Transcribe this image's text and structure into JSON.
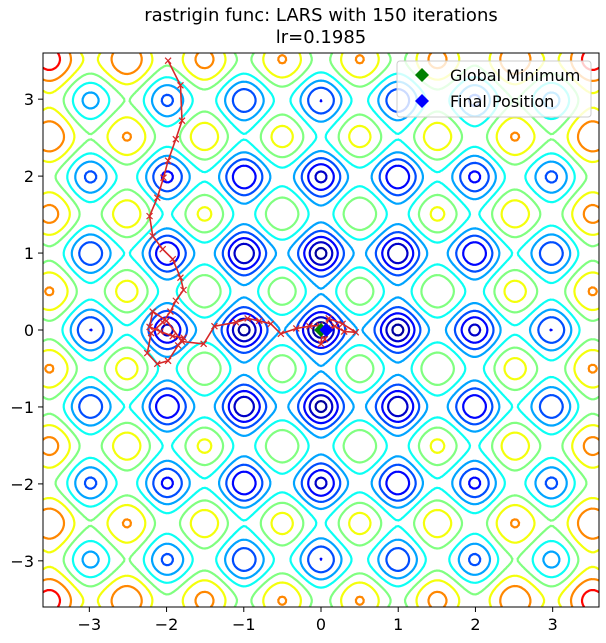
{
  "chart_data": {
    "type": "contour",
    "title": "rastrigin func: LARS with 150 iterations",
    "subtitle": "lr=0.1985",
    "xlabel": "",
    "ylabel": "",
    "xlim": [
      -3.6,
      3.6
    ],
    "ylim": [
      -3.6,
      3.6
    ],
    "xticks": [
      -3,
      -2,
      -1,
      0,
      1,
      2,
      3
    ],
    "yticks": [
      -3,
      -2,
      -1,
      0,
      1,
      2,
      3
    ],
    "xtick_labels": [
      "−3",
      "−2",
      "−1",
      "0",
      "1",
      "2",
      "3"
    ],
    "ytick_labels": [
      "−3",
      "−2",
      "−1",
      "0",
      "1",
      "2",
      "3"
    ],
    "grid": false,
    "legend_position": "top-right",
    "colormap": "jet",
    "contour_levels": [
      2,
      5,
      9,
      14,
      20,
      27,
      35,
      43,
      52,
      61,
      70
    ],
    "series": [
      {
        "name": "Global Minimum",
        "marker": "diamond",
        "color": "#008000",
        "x": [
          0.0
        ],
        "y": [
          0.0
        ]
      },
      {
        "name": "Final Position",
        "marker": "diamond",
        "color": "#0000ff",
        "x": [
          0.07
        ],
        "y": [
          0.0
        ]
      },
      {
        "name": "",
        "marker": "x",
        "color": "#d62728",
        "x": [
          -1.98,
          -1.82,
          -1.8,
          -1.88,
          -1.98,
          -2.04,
          -2.12,
          -2.22,
          -2.18,
          -2.05,
          -1.92,
          -1.82,
          -1.78,
          -1.88,
          -1.95,
          -2.05,
          -2.2,
          -2.25,
          -2.12,
          -1.98,
          -1.85,
          -1.78,
          -1.92,
          -2.08,
          -2.22,
          -2.18,
          -2.0,
          -1.8,
          -1.52,
          -1.38,
          -1.1,
          -0.95,
          -0.8,
          -0.65,
          -0.52,
          -0.32,
          -0.15,
          -0.02,
          0.05,
          0.1,
          0.28,
          0.45,
          0.3,
          0.18,
          0.08,
          0.05,
          0.0,
          0.02,
          0.05,
          0.07
        ],
        "y": [
          3.5,
          3.18,
          2.72,
          2.48,
          2.2,
          1.98,
          1.72,
          1.48,
          1.22,
          1.05,
          0.92,
          0.68,
          0.52,
          0.38,
          0.24,
          0.1,
          -0.04,
          -0.3,
          -0.44,
          -0.4,
          -0.2,
          -0.1,
          -0.08,
          -0.02,
          0.04,
          0.24,
          0.12,
          -0.15,
          -0.18,
          0.05,
          0.1,
          0.15,
          0.12,
          0.08,
          -0.05,
          0.02,
          0.05,
          0.06,
          0.02,
          0.15,
          0.08,
          -0.03,
          -0.02,
          0.05,
          0.02,
          -0.12,
          -0.18,
          0.03,
          0.0,
          0.0
        ]
      }
    ]
  }
}
